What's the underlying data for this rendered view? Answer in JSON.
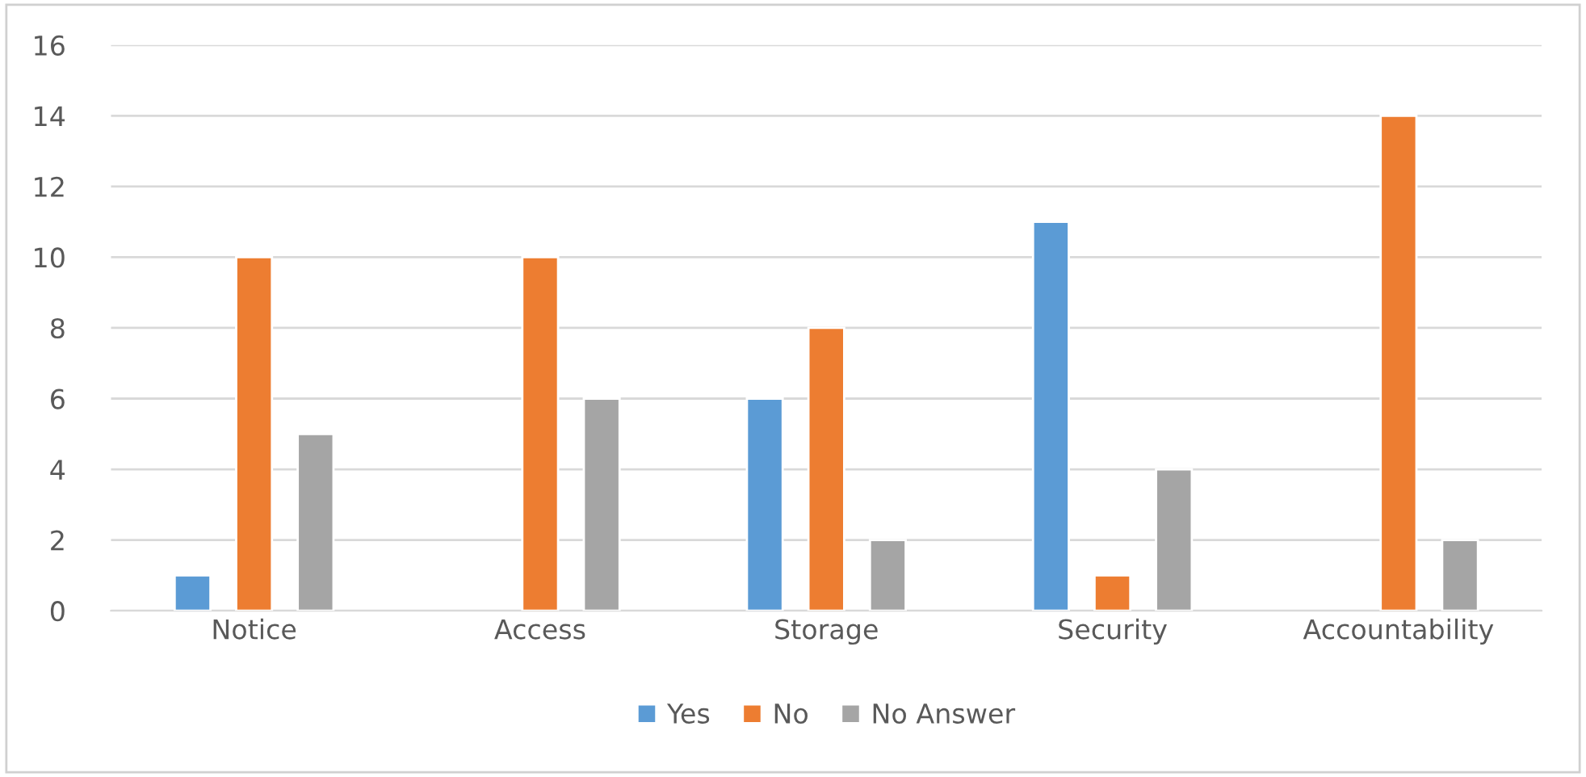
{
  "chart_data": {
    "type": "bar",
    "categories": [
      "Notice",
      "Access",
      "Storage",
      "Security",
      "Accountability"
    ],
    "series": [
      {
        "name": "Yes",
        "color": "#5b9bd5",
        "values": [
          1,
          null,
          6,
          11,
          null
        ]
      },
      {
        "name": "No",
        "color": "#ed7d31",
        "values": [
          10,
          10,
          8,
          1,
          14
        ]
      },
      {
        "name": "No Answer",
        "color": "#a5a5a5",
        "values": [
          5,
          6,
          2,
          4,
          2
        ]
      }
    ],
    "ylim": [
      0,
      16
    ],
    "yticks": [
      0,
      2,
      4,
      6,
      8,
      10,
      12,
      14,
      16
    ],
    "grid": "y",
    "legend": "bottom"
  }
}
